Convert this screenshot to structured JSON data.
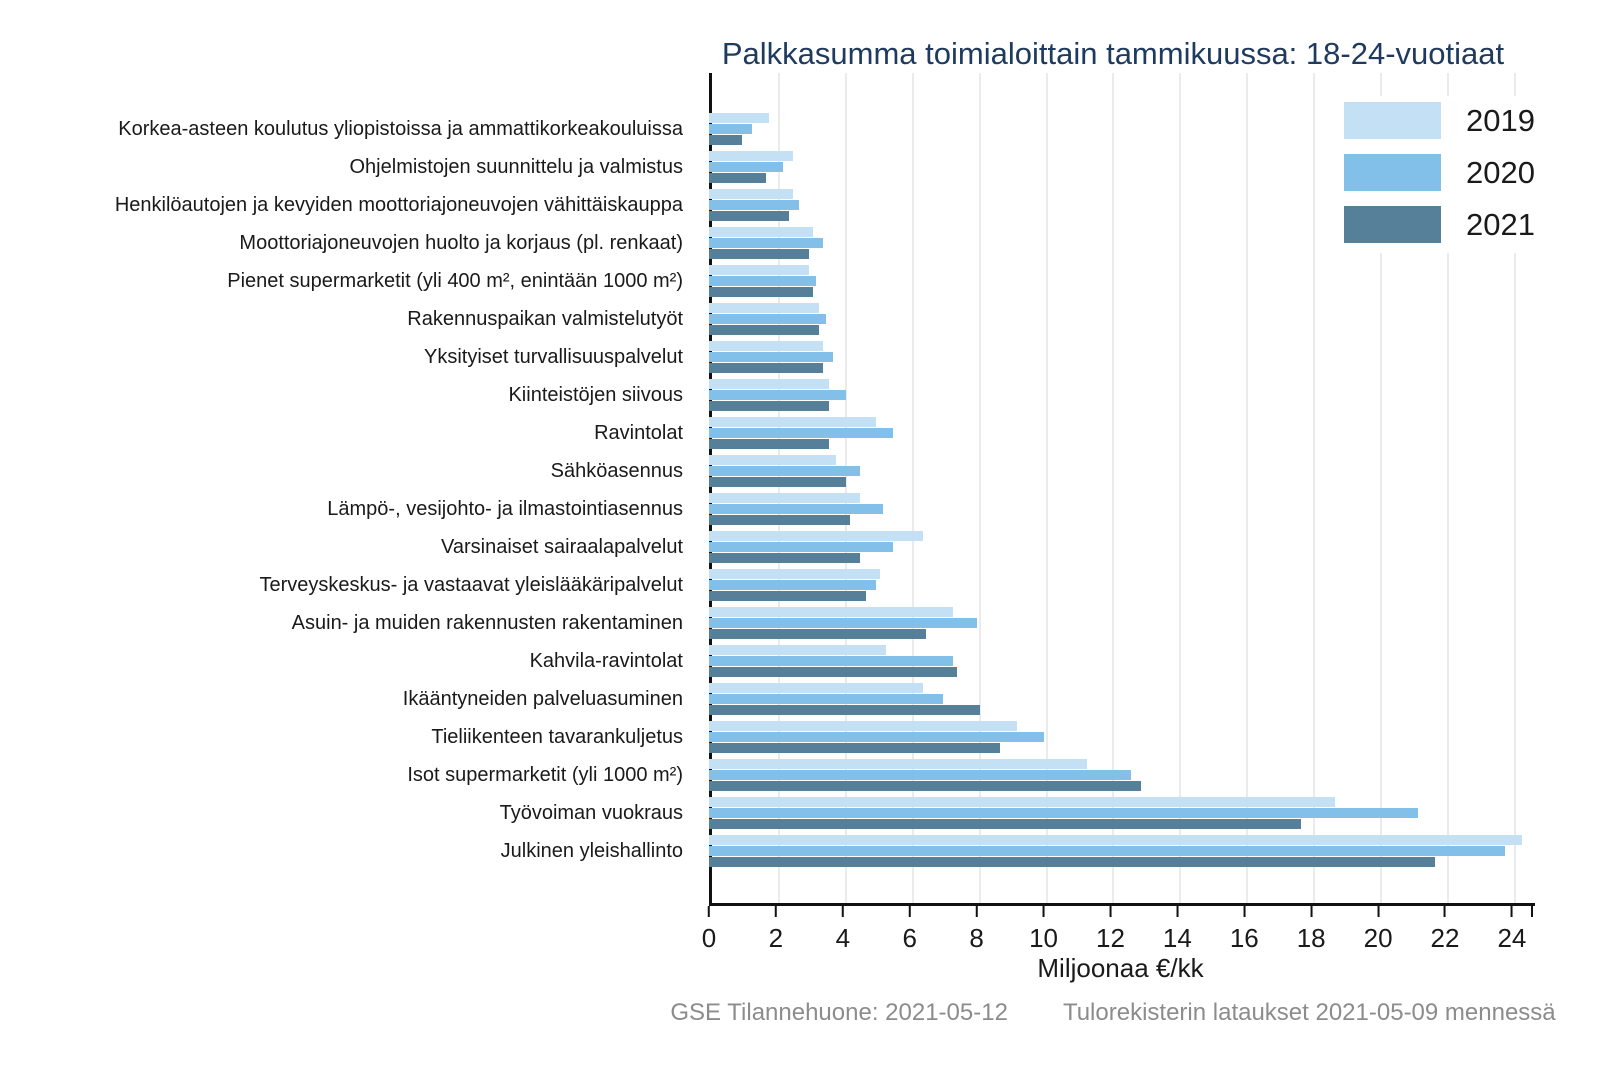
{
  "title": "Palkkasumma toimialoittain tammikuussa: 18-24-vuotiaat",
  "colors": {
    "series_2019": "#c3e0f4",
    "series_2020": "#82bfe9",
    "series_2021": "#567f99",
    "title_text": "#1f3a5f",
    "footer_text": "#8c8c8c",
    "gridline": "#ebebeb",
    "axis": "#111111"
  },
  "legend": [
    {
      "label": "2019",
      "color": "#c3e0f4"
    },
    {
      "label": "2020",
      "color": "#82bfe9"
    },
    {
      "label": "2021",
      "color": "#567f99"
    }
  ],
  "x_axis": {
    "label": "Miljoonaa €/kk",
    "ticks": [
      0,
      2,
      4,
      6,
      8,
      10,
      12,
      14,
      16,
      18,
      20,
      22,
      24
    ],
    "max": 24.6
  },
  "footer": {
    "source_left": "GSE Tilannehuone: 2021-05-12",
    "source_right": "Tulorekisterin lataukset 2021-05-09 mennessä"
  },
  "chart_data": {
    "type": "bar",
    "orientation": "horizontal",
    "title": "Palkkasumma toimialoittain tammikuussa: 18-24-vuotiaat",
    "xlabel": "Miljoonaa €/kk",
    "xlim": [
      0,
      24.6
    ],
    "grid": "vertical",
    "legend_position": "top-right",
    "categories": [
      "Korkea-asteen koulutus yliopistoissa ja ammattikorkeakouluissa",
      "Ohjelmistojen suunnittelu ja valmistus",
      "Henkilöautojen ja kevyiden moottoriajoneuvojen vähittäiskauppa",
      "Moottoriajoneuvojen huolto ja korjaus (pl. renkaat)",
      "Pienet supermarketit (yli 400 m², enintään 1000 m²)",
      "Rakennuspaikan valmistelutyöt",
      "Yksityiset turvallisuuspalvelut",
      "Kiinteistöjen siivous",
      "Ravintolat",
      "Sähköasennus",
      "Lämpö-, vesijohto- ja ilmastointiasennus",
      "Varsinaiset sairaalapalvelut",
      "Terveyskeskus- ja vastaavat yleislääkäripalvelut",
      "Asuin- ja muiden rakennusten rakentaminen",
      "Kahvila-ravintolat",
      "Ikääntyneiden palveluasuminen",
      "Tieliikenteen tavarankuljetus",
      "Isot supermarketit (yli 1000 m²)",
      "Työvoiman vuokraus",
      "Julkinen yleishallinto"
    ],
    "series": [
      {
        "name": "2019",
        "color": "#c3e0f4",
        "values": [
          1.8,
          2.5,
          2.5,
          3.1,
          3.0,
          3.3,
          3.4,
          3.6,
          5.0,
          3.8,
          4.5,
          6.4,
          5.1,
          7.3,
          5.3,
          6.4,
          9.2,
          11.3,
          18.7,
          24.3
        ]
      },
      {
        "name": "2020",
        "color": "#82bfe9",
        "values": [
          1.3,
          2.2,
          2.7,
          3.4,
          3.2,
          3.5,
          3.7,
          4.1,
          5.5,
          4.5,
          5.2,
          5.5,
          5.0,
          8.0,
          7.3,
          7.0,
          10.0,
          12.6,
          21.2,
          23.8
        ]
      },
      {
        "name": "2021",
        "color": "#567f99",
        "values": [
          1.0,
          1.7,
          2.4,
          3.0,
          3.1,
          3.3,
          3.4,
          3.6,
          3.6,
          4.1,
          4.2,
          4.5,
          4.7,
          6.5,
          7.4,
          8.1,
          8.7,
          12.9,
          17.7,
          21.7
        ]
      }
    ]
  }
}
